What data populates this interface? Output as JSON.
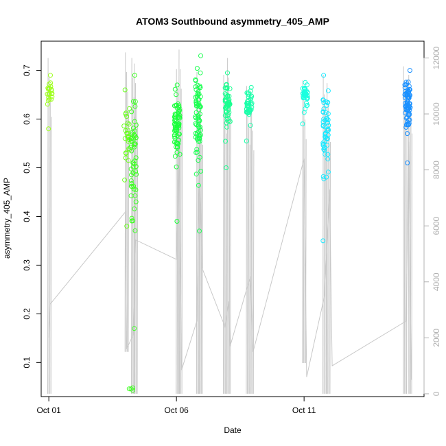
{
  "chart_data": {
    "type": "scatter",
    "title": "ATOM3 Southbound asymmetry_405_AMP",
    "xlabel": "Date",
    "ylabel": "asymmetry_405_AMP",
    "x_ticks": [
      "Oct 01",
      "Oct 06",
      "Oct 11"
    ],
    "x_tick_days": [
      1,
      6,
      11
    ],
    "xlim": [
      0.7,
      15.7
    ],
    "ylim": [
      0.03,
      0.76
    ],
    "y_ticks": [
      0.1,
      0.2,
      0.3,
      0.4,
      0.5,
      0.6,
      0.7
    ],
    "y2lim": [
      -100,
      12600
    ],
    "y2_ticks": [
      0,
      2000,
      4000,
      6000,
      8000,
      10000,
      12000
    ],
    "grid": false,
    "clusters": [
      {
        "day": 1.03,
        "count": 22,
        "min": 0.58,
        "max": 0.69,
        "color": "#9cff1a"
      },
      {
        "day": 4.05,
        "count": 28,
        "min": 0.38,
        "max": 0.66,
        "color": "#6aff1e"
      },
      {
        "day": 4.25,
        "count": 4,
        "min": 0.043,
        "max": 0.048,
        "color": "#3dff1e"
      },
      {
        "day": 4.32,
        "count": 55,
        "min": 0.17,
        "max": 0.69,
        "color": "#3dff22"
      },
      {
        "day": 6.03,
        "count": 70,
        "min": 0.39,
        "max": 0.67,
        "color": "#1aff3a"
      },
      {
        "day": 6.85,
        "count": 75,
        "min": 0.37,
        "max": 0.73,
        "color": "#1aff50"
      },
      {
        "day": 8.0,
        "count": 55,
        "min": 0.5,
        "max": 0.695,
        "color": "#1aff90"
      },
      {
        "day": 8.85,
        "count": 45,
        "min": 0.555,
        "max": 0.665,
        "color": "#1affaa"
      },
      {
        "day": 11.05,
        "count": 40,
        "min": 0.59,
        "max": 0.675,
        "color": "#1affe0"
      },
      {
        "day": 11.85,
        "count": 55,
        "min": 0.35,
        "max": 0.69,
        "color": "#1ae8ff"
      },
      {
        "day": 15.05,
        "count": 80,
        "min": 0.51,
        "max": 0.7,
        "color": "#1a90ff"
      }
    ],
    "line_series": {
      "color": "#c8c8c8",
      "points": [
        [
          1.0,
          2000
        ],
        [
          1.05,
          3200
        ],
        [
          4.0,
          6500
        ],
        [
          4.05,
          1600
        ],
        [
          4.3,
          2100
        ],
        [
          4.4,
          5500
        ],
        [
          6.0,
          4800
        ],
        [
          6.1,
          9200
        ],
        [
          6.2,
          850
        ],
        [
          6.8,
          2600
        ],
        [
          6.9,
          9000
        ],
        [
          7.0,
          4500
        ],
        [
          7.9,
          2400
        ],
        [
          8.05,
          3300
        ],
        [
          8.1,
          1700
        ],
        [
          8.9,
          4200
        ],
        [
          9.0,
          1500
        ],
        [
          11.0,
          8400
        ],
        [
          11.1,
          600
        ],
        [
          11.8,
          3500
        ],
        [
          12.0,
          7300
        ],
        [
          12.1,
          1000
        ],
        [
          15.0,
          2600
        ],
        [
          15.1,
          9000
        ],
        [
          15.2,
          500
        ]
      ],
      "spikes": [
        {
          "day": 1.02,
          "low": 0,
          "high": 12000
        },
        {
          "day": 4.05,
          "low": 1500,
          "high": 12200
        },
        {
          "day": 4.3,
          "low": 0,
          "high": 12000
        },
        {
          "day": 4.4,
          "low": 0,
          "high": 11800
        },
        {
          "day": 6.05,
          "low": 0,
          "high": 11600
        },
        {
          "day": 6.15,
          "low": 0,
          "high": 12300
        },
        {
          "day": 6.85,
          "low": 0,
          "high": 11500
        },
        {
          "day": 6.95,
          "low": 0,
          "high": 11000
        },
        {
          "day": 7.9,
          "low": 0,
          "high": 11400
        },
        {
          "day": 8.05,
          "low": 0,
          "high": 12000
        },
        {
          "day": 8.8,
          "low": 0,
          "high": 11000
        },
        {
          "day": 8.95,
          "low": 0,
          "high": 10800
        },
        {
          "day": 11.0,
          "low": 1100,
          "high": 11200
        },
        {
          "day": 11.8,
          "low": 0,
          "high": 11400
        },
        {
          "day": 11.95,
          "low": 0,
          "high": 11100
        },
        {
          "day": 14.95,
          "low": 0,
          "high": 11700
        },
        {
          "day": 15.15,
          "low": 0,
          "high": 11400
        }
      ]
    }
  }
}
